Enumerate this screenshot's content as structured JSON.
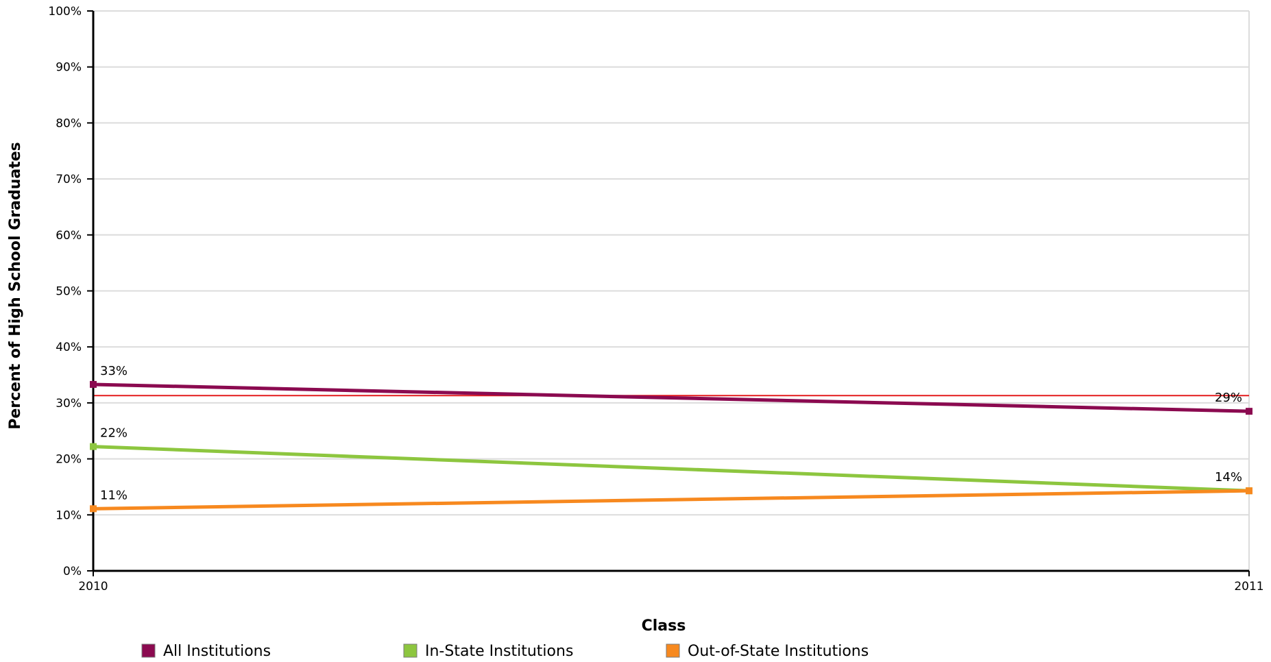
{
  "chart_data": {
    "type": "line",
    "title": "",
    "xlabel": "Class",
    "ylabel": "Percent of High School Graduates",
    "x": [
      "2010",
      "2011"
    ],
    "ylim": [
      0,
      100
    ],
    "y_ticks": [
      "0%",
      "10%",
      "20%",
      "30%",
      "40%",
      "50%",
      "60%",
      "70%",
      "80%",
      "90%",
      "100%"
    ],
    "grid": true,
    "legend_position": "bottom",
    "series": [
      {
        "name": "All Institutions",
        "color": "#8b0a50",
        "values": [
          33.3,
          28.5
        ],
        "labels": [
          "33%",
          "29%"
        ]
      },
      {
        "name": "In-State Institutions",
        "color": "#8dc63f",
        "values": [
          22.2,
          14.3
        ],
        "labels": [
          "22%",
          ""
        ]
      },
      {
        "name": "Out-of-State Institutions",
        "color": "#f7891f",
        "values": [
          11.1,
          14.3
        ],
        "labels": [
          "11%",
          "14%"
        ]
      }
    ],
    "reference_line": {
      "value": 31.3,
      "color": "#e31a1c"
    }
  }
}
